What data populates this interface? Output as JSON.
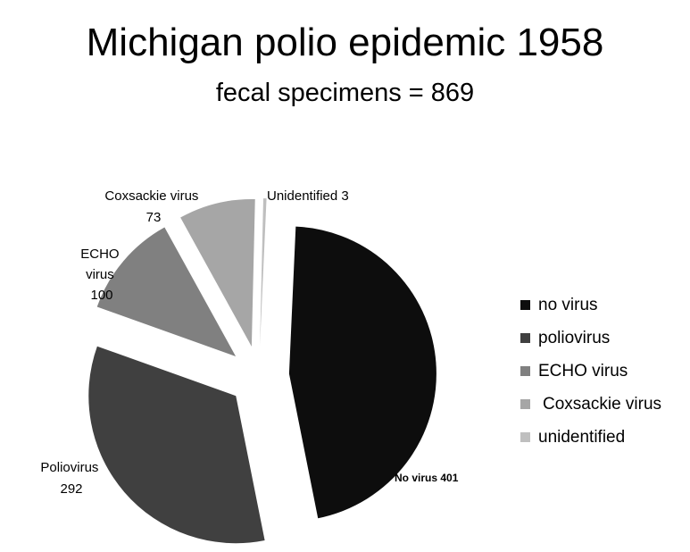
{
  "title": "Michigan polio epidemic 1958",
  "subtitle": "fecal specimens  = 869",
  "chart_data": {
    "type": "pie",
    "total": 869,
    "slices": [
      {
        "name": "no virus",
        "value": 401,
        "color": "#0d0d0d",
        "label_lines": [
          "No virus 401"
        ]
      },
      {
        "name": "poliovirus",
        "value": 292,
        "color": "#404040",
        "label_lines": [
          "Poliovirus",
          "292"
        ]
      },
      {
        "name": "ECHO virus",
        "value": 100,
        "color": "#808080",
        "label_lines": [
          "ECHO",
          "virus",
          "100"
        ]
      },
      {
        "name": "Coxsackie virus",
        "value": 73,
        "color": "#a6a6a6",
        "label_lines": [
          "Coxsackie virus",
          "73"
        ]
      },
      {
        "name": "unidentified",
        "value": 3,
        "color": "#bfbfbf",
        "label_lines": [
          "Unidentified 3"
        ]
      }
    ],
    "legend": [
      "no virus",
      "poliovirus",
      "ECHO virus",
      "Coxsackie virus",
      "unidentified"
    ],
    "legend_position": "right",
    "exploded": true
  }
}
